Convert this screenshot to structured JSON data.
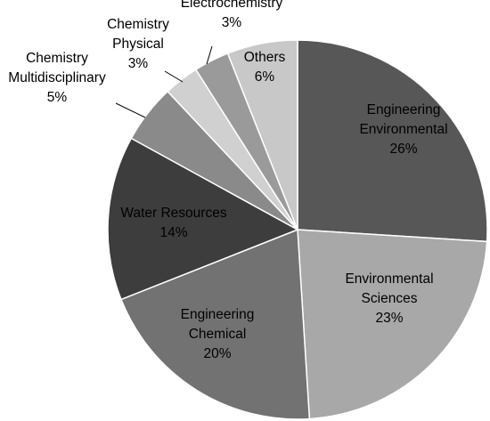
{
  "chart_data": {
    "type": "pie",
    "title": "",
    "unit": "%",
    "slices": [
      {
        "label": [
          "Engineering",
          "Environmental"
        ],
        "value": 26,
        "display": "26%",
        "color": "#575757",
        "text_color": "#000000"
      },
      {
        "label": [
          "Environmental",
          "Sciences"
        ],
        "value": 23,
        "display": "23%",
        "color": "#a8a8a8",
        "text_color": "#000000"
      },
      {
        "label": [
          "Engineering",
          "Chemical"
        ],
        "value": 20,
        "display": "20%",
        "color": "#727272",
        "text_color": "#000000"
      },
      {
        "label": [
          "Water Resources"
        ],
        "value": 14,
        "display": "14%",
        "color": "#3d3d3d",
        "text_color": "#000000"
      },
      {
        "label": [
          "Chemistry",
          "Multidisciplinary"
        ],
        "value": 5,
        "display": "5%",
        "color": "#8a8a8a",
        "text_color": "#000000"
      },
      {
        "label": [
          "Chemistry",
          "Physical"
        ],
        "value": 3,
        "display": "3%",
        "color": "#d0d0d0",
        "text_color": "#000000"
      },
      {
        "label": [
          "Electrochemistry"
        ],
        "value": 3,
        "display": "3%",
        "color": "#9a9a9a",
        "text_color": "#000000"
      },
      {
        "label": [
          "Others"
        ],
        "value": 6,
        "display": "6%",
        "color": "#c8c8c8",
        "text_color": "#000000"
      }
    ]
  }
}
